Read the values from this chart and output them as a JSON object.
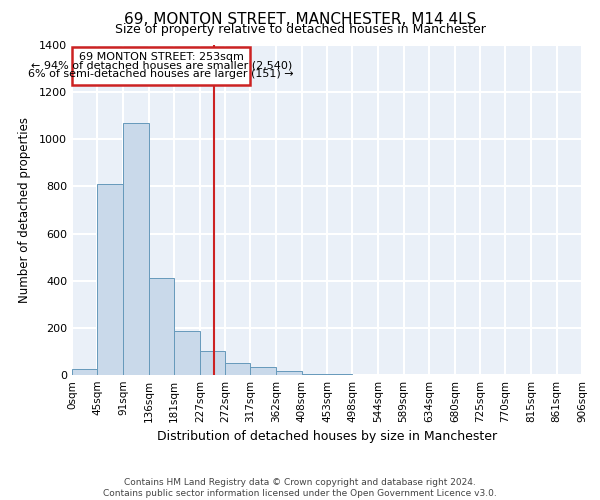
{
  "title": "69, MONTON STREET, MANCHESTER, M14 4LS",
  "subtitle": "Size of property relative to detached houses in Manchester",
  "xlabel": "Distribution of detached houses by size in Manchester",
  "ylabel": "Number of detached properties",
  "bin_edges": [
    0,
    45,
    91,
    136,
    181,
    227,
    272,
    317,
    362,
    408,
    453,
    498,
    544,
    589,
    634,
    680,
    725,
    770,
    815,
    861,
    906
  ],
  "bar_heights": [
    25,
    810,
    1070,
    410,
    185,
    100,
    50,
    32,
    18,
    5,
    3,
    2,
    2,
    1,
    1,
    1,
    1,
    1,
    1,
    1
  ],
  "bar_color": "#c9d9ea",
  "bar_edge_color": "#6699bb",
  "vline_x": 253,
  "vline_color": "#cc2222",
  "annotation_line1": "69 MONTON STREET: 253sqm",
  "annotation_line2": "← 94% of detached houses are smaller (2,540)",
  "annotation_line3": "6% of semi-detached houses are larger (151) →",
  "ylim": [
    0,
    1400
  ],
  "yticks": [
    0,
    200,
    400,
    600,
    800,
    1000,
    1200,
    1400
  ],
  "background_color": "#eaf0f8",
  "grid_color": "#ffffff",
  "footnote": "Contains HM Land Registry data © Crown copyright and database right 2024.\nContains public sector information licensed under the Open Government Licence v3.0.",
  "tick_labels": [
    "0sqm",
    "45sqm",
    "91sqm",
    "136sqm",
    "181sqm",
    "227sqm",
    "272sqm",
    "317sqm",
    "362sqm",
    "408sqm",
    "453sqm",
    "498sqm",
    "544sqm",
    "589sqm",
    "634sqm",
    "680sqm",
    "725sqm",
    "770sqm",
    "815sqm",
    "861sqm",
    "906sqm"
  ]
}
